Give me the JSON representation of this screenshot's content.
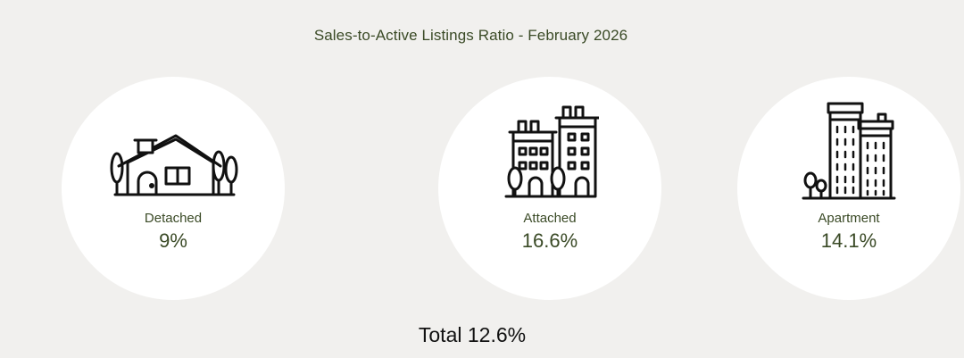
{
  "title": "Sales-to-Active Listings Ratio - February 2026",
  "categories": [
    {
      "label": "Detached",
      "value": "9%",
      "icon": "house-with-trees-icon"
    },
    {
      "label": "Attached",
      "value": "16.6%",
      "icon": "townhouse-buildings-icon"
    },
    {
      "label": "Apartment",
      "value": "14.1%",
      "icon": "apartment-tower-icon"
    }
  ],
  "total": "Total 12.6%",
  "colors": {
    "background": "#f1f0ee",
    "circle": "#ffffff",
    "label_text": "#3a4a26",
    "total_text": "#111111",
    "icon_stroke": "#111111"
  }
}
